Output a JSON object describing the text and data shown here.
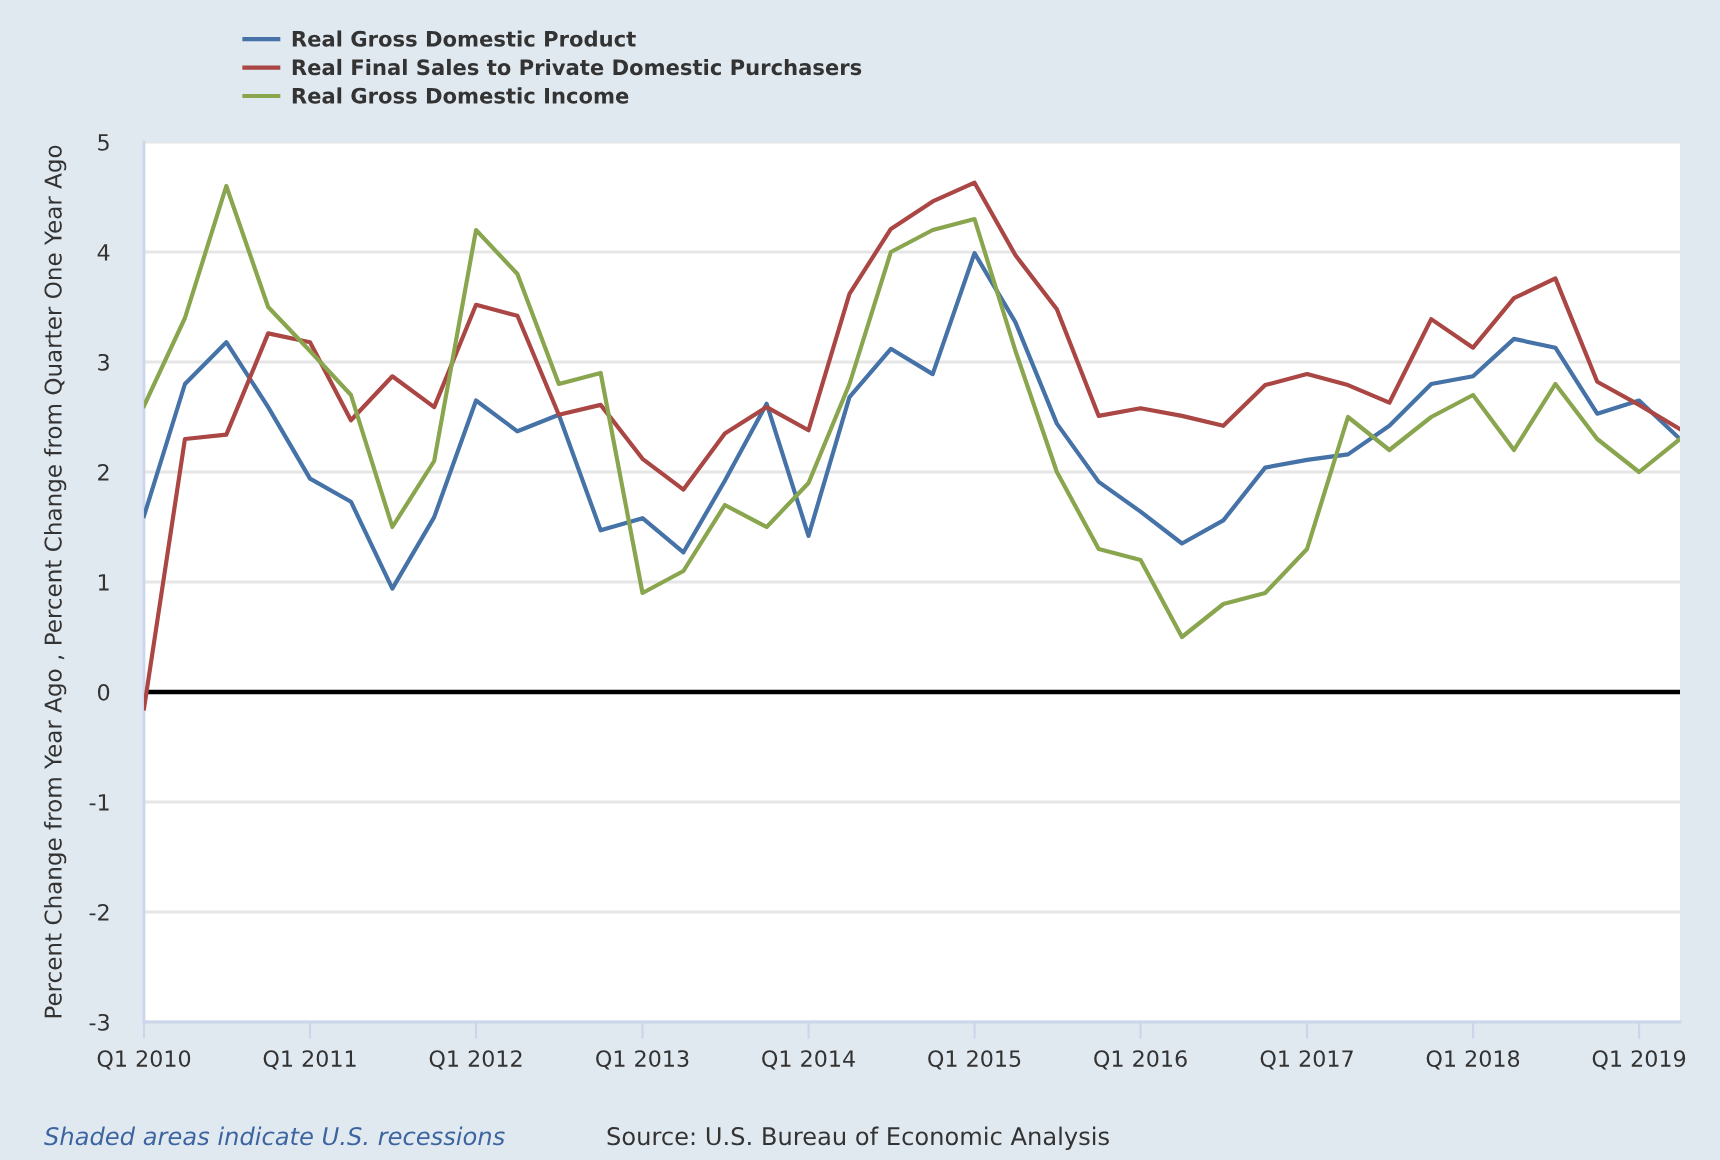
{
  "chart_data": {
    "type": "line",
    "ylabel": "Percent Change from Year Ago , Percent Change from Quarter One Year Ago",
    "x": [
      "2010-01",
      "2010-04",
      "2010-07",
      "2010-10",
      "2011-01",
      "2011-04",
      "2011-07",
      "2011-10",
      "2012-01",
      "2012-04",
      "2012-07",
      "2012-10",
      "2013-01",
      "2013-04",
      "2013-07",
      "2013-10",
      "2014-01",
      "2014-04",
      "2014-07",
      "2014-10",
      "2015-01",
      "2015-04",
      "2015-07",
      "2015-10",
      "2016-01",
      "2016-04",
      "2016-07",
      "2016-10",
      "2017-01",
      "2017-04",
      "2017-07",
      "2017-10",
      "2018-01",
      "2018-04",
      "2018-07",
      "2018-10",
      "2019-01",
      "2019-04"
    ],
    "series": [
      {
        "name": "Real Gross Domestic Product",
        "color": "#4572a7",
        "values": [
          1.6,
          2.8,
          3.18,
          2.59,
          1.94,
          1.73,
          0.94,
          1.59,
          2.65,
          2.37,
          2.52,
          1.47,
          1.58,
          1.27,
          1.92,
          2.62,
          1.42,
          2.68,
          3.12,
          2.89,
          3.99,
          3.36,
          2.44,
          1.91,
          1.64,
          1.35,
          1.56,
          2.04,
          2.11,
          2.16,
          2.42,
          2.8,
          2.87,
          3.21,
          3.13,
          2.53,
          2.65,
          2.3
        ]
      },
      {
        "name": "Real Final Sales to Private Domestic Purchasers",
        "color": "#aa4643",
        "values": [
          -0.15,
          2.3,
          2.34,
          3.26,
          3.18,
          2.47,
          2.87,
          2.59,
          3.52,
          3.42,
          2.52,
          2.61,
          2.12,
          1.84,
          2.35,
          2.59,
          2.38,
          3.62,
          4.21,
          4.46,
          4.63,
          3.97,
          3.48,
          2.51,
          2.58,
          2.51,
          2.42,
          2.79,
          2.89,
          2.79,
          2.63,
          3.39,
          3.13,
          3.58,
          3.76,
          2.82,
          2.61,
          2.39
        ]
      },
      {
        "name": "Real Gross Domestic Income",
        "color": "#89a54e",
        "values": [
          2.6,
          3.4,
          4.6,
          3.5,
          3.1,
          2.7,
          1.5,
          2.1,
          4.2,
          3.8,
          2.8,
          2.9,
          0.9,
          1.1,
          1.7,
          1.5,
          1.9,
          2.8,
          4.0,
          4.2,
          4.3,
          3.1,
          2.0,
          1.3,
          1.2,
          0.5,
          0.8,
          0.9,
          1.3,
          2.5,
          2.2,
          2.5,
          2.7,
          2.2,
          2.8,
          2.3,
          2.0,
          2.3
        ]
      }
    ],
    "xlim": [
      "2010-01",
      "2019-04"
    ],
    "xticks": [
      {
        "value": "2010-01",
        "label": "Q1 2010"
      },
      {
        "value": "2011-01",
        "label": "Q1 2011"
      },
      {
        "value": "2012-01",
        "label": "Q1 2012"
      },
      {
        "value": "2013-01",
        "label": "Q1 2013"
      },
      {
        "value": "2014-01",
        "label": "Q1 2014"
      },
      {
        "value": "2015-01",
        "label": "Q1 2015"
      },
      {
        "value": "2016-01",
        "label": "Q1 2016"
      },
      {
        "value": "2017-01",
        "label": "Q1 2017"
      },
      {
        "value": "2018-01",
        "label": "Q1 2018"
      },
      {
        "value": "2019-01",
        "label": "Q1 2019"
      }
    ],
    "ylim": [
      -3,
      5
    ],
    "yticks": [
      -3,
      -2,
      -1,
      0,
      1,
      2,
      3,
      4,
      5
    ],
    "grid": "y",
    "legend": "top left",
    "line_style": "solid",
    "ref_lines": [
      {
        "axis": "y",
        "value": 0,
        "color": "#000000"
      }
    ],
    "annotations": [
      "Shaded areas indicate U.S. recessions",
      "Source: U.S. Bureau of Economic Analysis"
    ]
  }
}
